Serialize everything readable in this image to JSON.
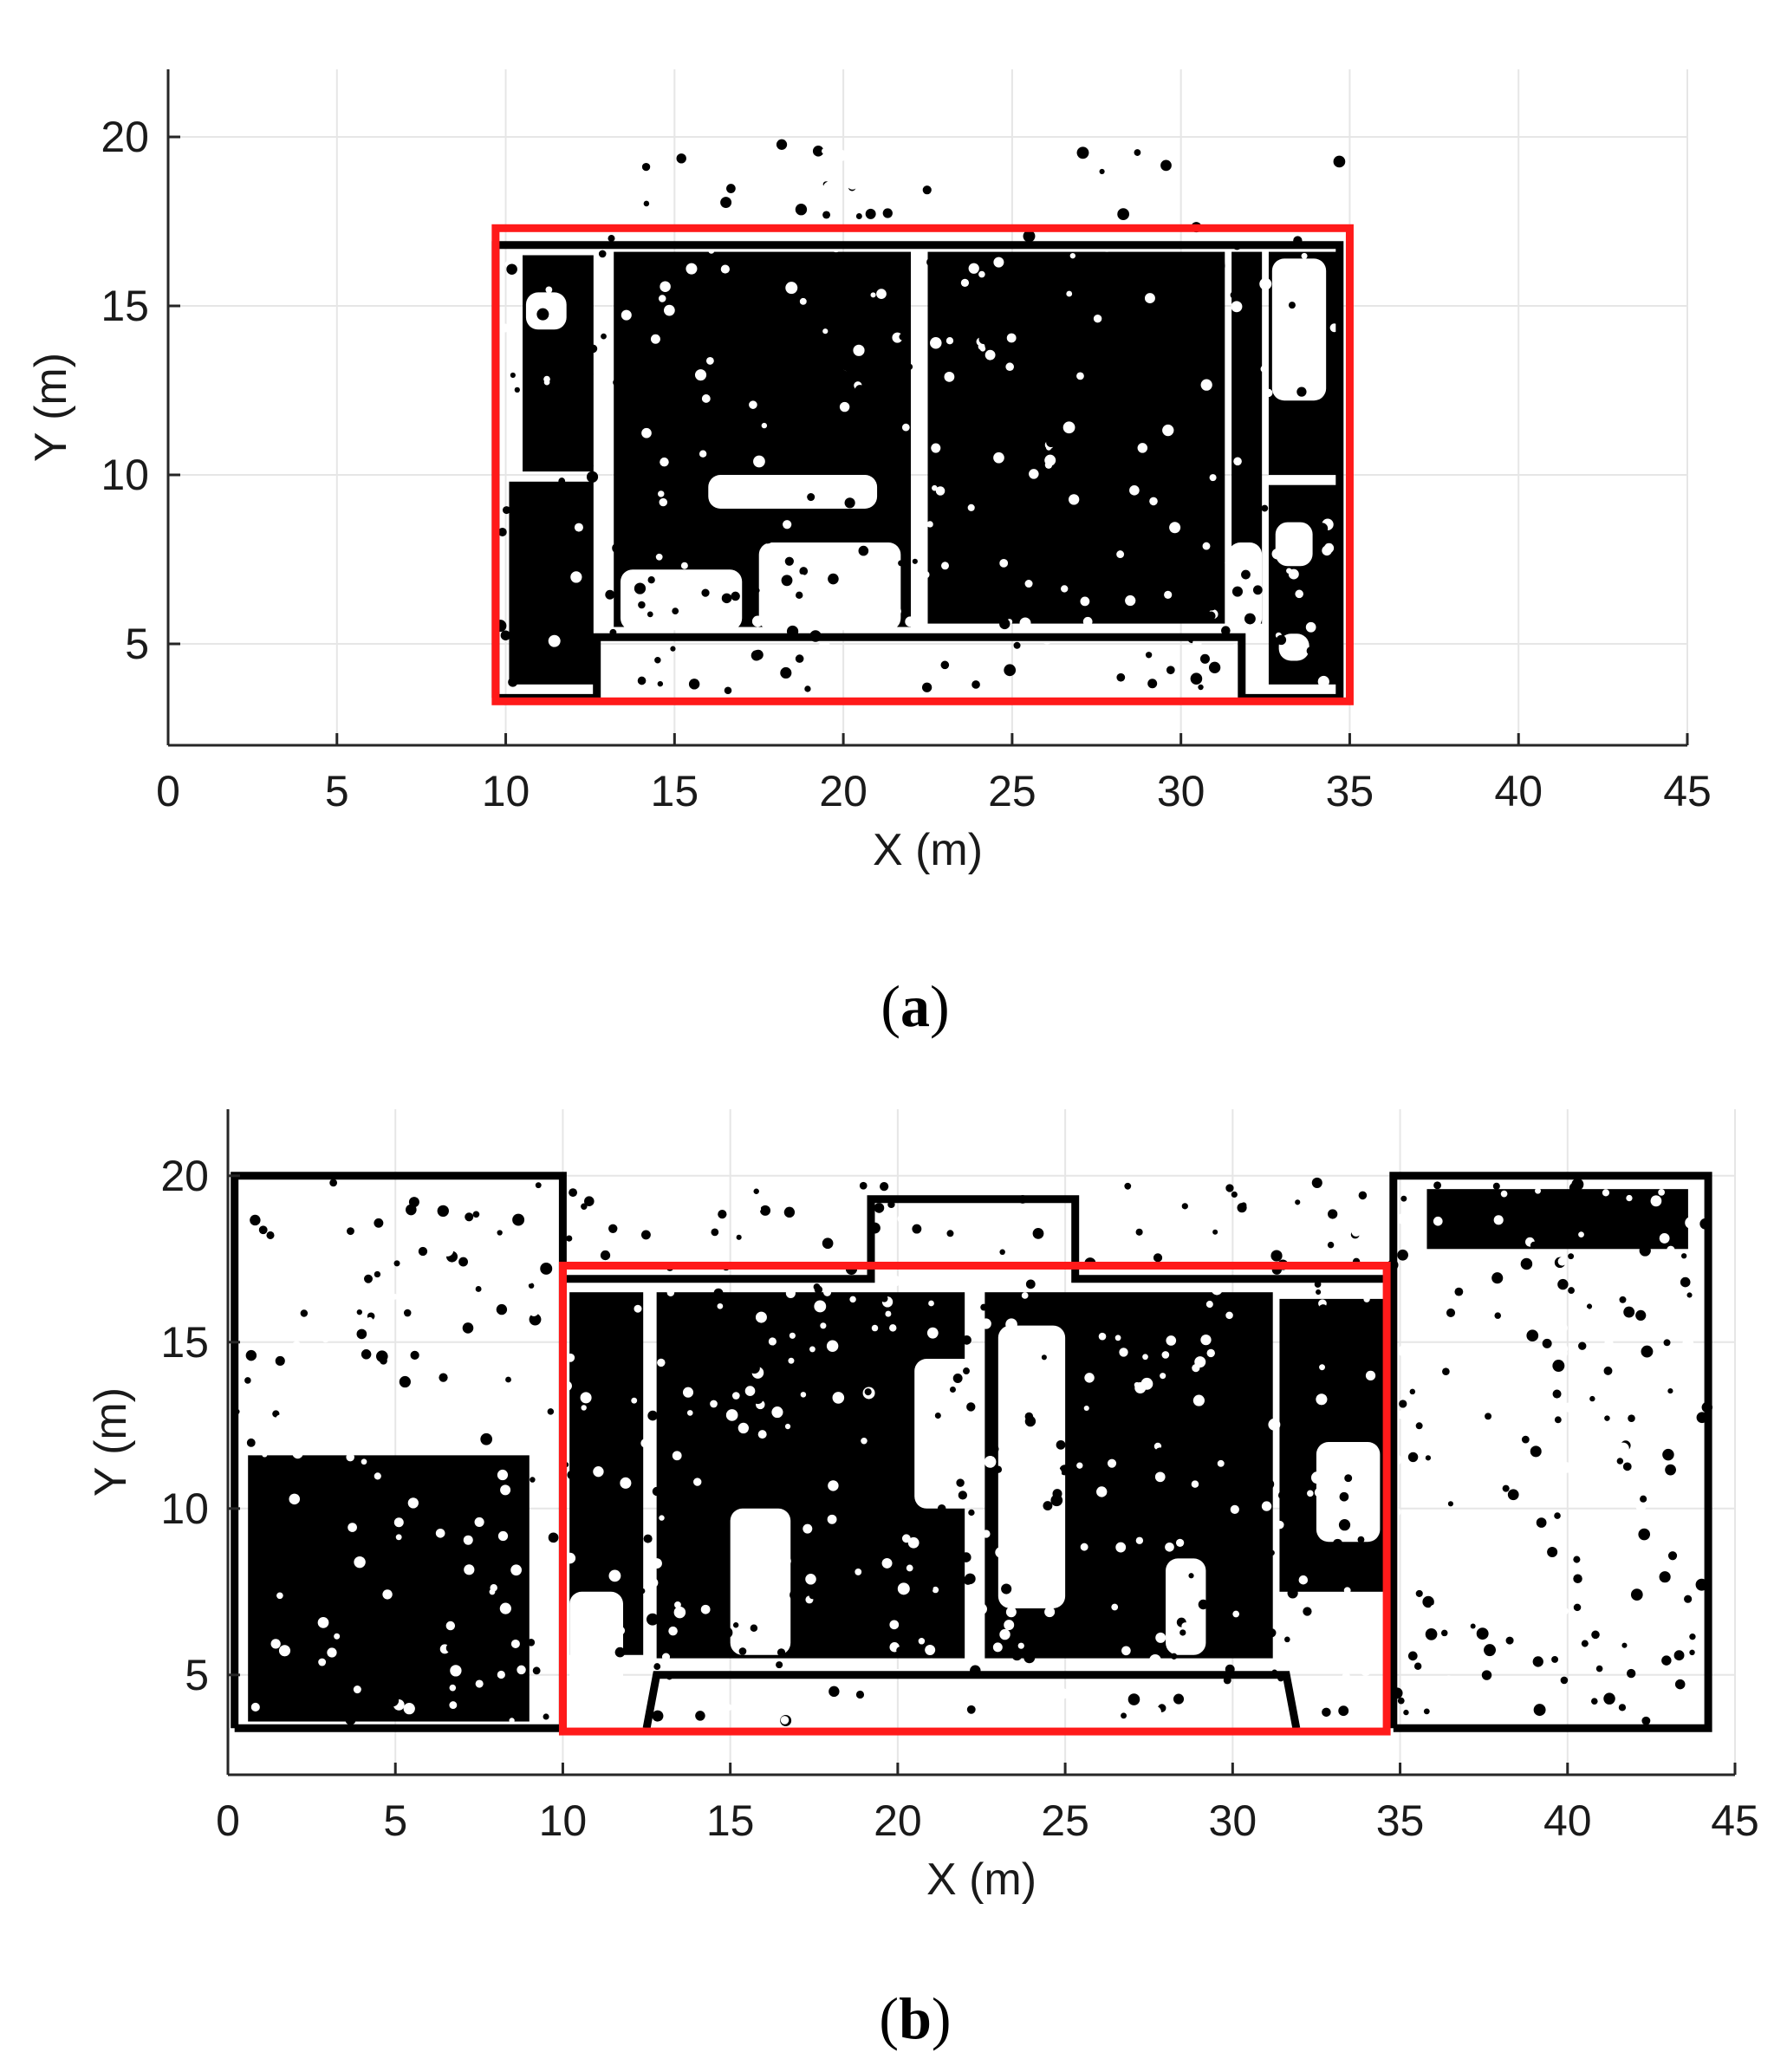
{
  "captions": {
    "a": "(a)",
    "b": "(b)"
  },
  "colors": {
    "highlight": "#ff1a1a",
    "points": "#000000",
    "grid": "#e6e6e6",
    "axis": "#262626"
  },
  "chart_data": [
    {
      "id": "a",
      "type": "scatter",
      "title": "",
      "xlabel": "X (m)",
      "ylabel": "Y (m)",
      "xlim": [
        0,
        45
      ],
      "ylim": [
        2,
        22
      ],
      "xticks": [
        0,
        5,
        10,
        15,
        20,
        25,
        30,
        35,
        40,
        45
      ],
      "yticks": [
        5,
        10,
        15,
        20
      ],
      "grid": true,
      "legend": "none",
      "highlight_rect": {
        "x": [
          9.7,
          35.0
        ],
        "y": [
          3.3,
          17.3
        ]
      },
      "outline": [
        [
          9.7,
          3.4
        ],
        [
          12.7,
          3.4
        ],
        [
          12.7,
          5.2
        ],
        [
          31.8,
          5.2
        ],
        [
          31.8,
          3.4
        ],
        [
          34.7,
          3.4
        ],
        [
          34.7,
          16.8
        ],
        [
          9.7,
          16.8
        ],
        [
          9.7,
          3.4
        ]
      ],
      "solid_regions": [
        [
          10.1,
          3.8,
          12.6,
          9.8
        ],
        [
          10.5,
          10.1,
          12.6,
          16.5
        ],
        [
          13.2,
          5.5,
          22.0,
          16.6
        ],
        [
          22.5,
          5.6,
          31.3,
          16.6
        ],
        [
          31.5,
          5.6,
          32.4,
          16.6
        ],
        [
          32.6,
          10.0,
          34.6,
          16.6
        ],
        [
          32.6,
          3.8,
          34.6,
          9.7
        ]
      ],
      "clear_regions": [
        [
          13.4,
          5.4,
          17.0,
          7.2
        ],
        [
          17.5,
          5.4,
          21.7,
          8.0
        ],
        [
          31.4,
          5.4,
          32.4,
          8.0
        ],
        [
          32.7,
          12.2,
          34.3,
          16.4
        ],
        [
          16.0,
          9.0,
          21.0,
          10.0
        ],
        [
          10.6,
          14.3,
          11.8,
          15.4
        ],
        [
          32.8,
          7.3,
          33.9,
          8.6
        ],
        [
          32.9,
          4.5,
          33.8,
          5.3
        ]
      ]
    },
    {
      "id": "b",
      "type": "scatter",
      "title": "",
      "xlabel": "X (m)",
      "ylabel": "Y (m)",
      "xlim": [
        0,
        45
      ],
      "ylim": [
        2,
        22
      ],
      "xticks": [
        0,
        5,
        10,
        15,
        20,
        25,
        30,
        35,
        40,
        45
      ],
      "yticks": [
        5,
        10,
        15,
        20
      ],
      "grid": true,
      "legend": "none",
      "highlight_rect": {
        "x": [
          10.0,
          34.6
        ],
        "y": [
          3.3,
          17.3
        ]
      },
      "outline": [
        [
          0.2,
          3.4
        ],
        [
          10.0,
          3.4
        ],
        [
          10.0,
          20.0
        ],
        [
          0.2,
          20.0
        ],
        [
          0.2,
          3.4
        ]
      ],
      "outline_2": [
        [
          34.8,
          3.4
        ],
        [
          44.2,
          3.4
        ],
        [
          44.2,
          20.0
        ],
        [
          34.8,
          20.0
        ],
        [
          34.8,
          3.4
        ]
      ],
      "outline_3": [
        [
          10.0,
          16.9
        ],
        [
          19.2,
          16.9
        ],
        [
          19.2,
          19.3
        ],
        [
          25.3,
          19.3
        ],
        [
          25.3,
          16.9
        ],
        [
          34.8,
          16.9
        ]
      ],
      "outline_4": [
        [
          12.5,
          3.4
        ],
        [
          12.8,
          5.0
        ],
        [
          31.6,
          5.0
        ],
        [
          31.9,
          3.4
        ]
      ],
      "solid_regions": [
        [
          0.6,
          3.6,
          9.0,
          11.6
        ],
        [
          10.2,
          5.6,
          12.4,
          16.5
        ],
        [
          12.8,
          5.5,
          22.0,
          16.5
        ],
        [
          22.6,
          5.5,
          31.2,
          16.5
        ],
        [
          31.4,
          7.5,
          34.6,
          16.3
        ],
        [
          35.8,
          17.8,
          43.6,
          19.6
        ]
      ],
      "clear_regions": [
        [
          15.0,
          5.6,
          16.8,
          10.0
        ],
        [
          20.5,
          10.0,
          22.4,
          14.5
        ],
        [
          23.0,
          7.0,
          25.0,
          15.5
        ],
        [
          28.0,
          5.6,
          29.2,
          8.5
        ],
        [
          10.2,
          3.6,
          11.8,
          7.5
        ],
        [
          32.5,
          9.0,
          34.4,
          12.0
        ]
      ]
    }
  ]
}
